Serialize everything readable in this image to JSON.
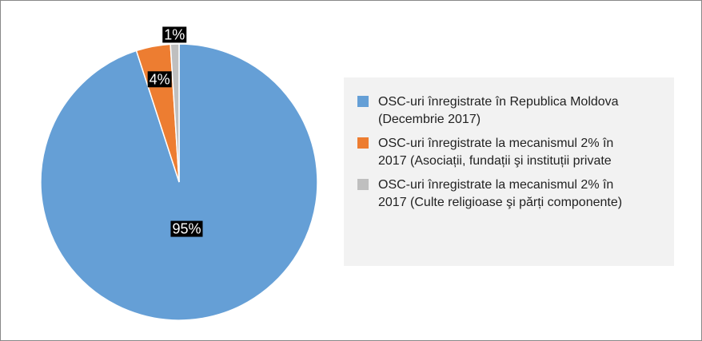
{
  "chart_data": {
    "type": "pie",
    "categories": [
      "OSC-uri înregistrate în Republica Moldova (Decembrie 2017)",
      "OSC-uri înregistrate la mecanismul 2% în 2017 (Asociații, fundații şi instituții private",
      "OSC-uri înregistrate la mecanismul 2% în 2017 (Culte religioase şi părți componente)"
    ],
    "values": [
      95,
      4,
      1
    ],
    "value_labels": [
      "95%",
      "4%",
      "1%"
    ],
    "colors": [
      "#659fd6",
      "#ed7d31",
      "#bfbfbf"
    ],
    "legend": "right"
  }
}
